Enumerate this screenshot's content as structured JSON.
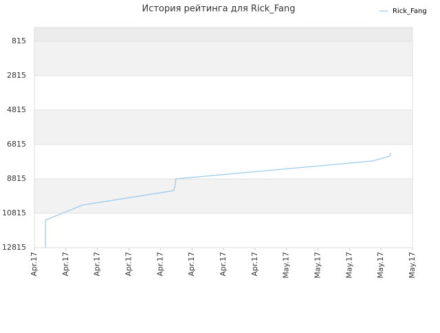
{
  "chart_data": {
    "type": "line",
    "title": "История рейтинга для Rick_Fang",
    "x": [
      0.35,
      0.35,
      1.53,
      4.43,
      4.47,
      4.49,
      10.73,
      11.28,
      11.3
    ],
    "series": [
      {
        "name": "Rick_Fang",
        "color": "#9ecae9",
        "values": [
          12815,
          11215,
          10335,
          9495,
          9135,
          8815,
          7775,
          7495,
          7295
        ]
      }
    ],
    "xlim": [
      0,
      12
    ],
    "xticks": [
      {
        "value": 0,
        "label": "Apr.17"
      },
      {
        "value": 1,
        "label": "Apr.17"
      },
      {
        "value": 2,
        "label": "Apr.17"
      },
      {
        "value": 3,
        "label": "Apr.17"
      },
      {
        "value": 4,
        "label": "Apr.17"
      },
      {
        "value": 5,
        "label": "Apr.17"
      },
      {
        "value": 6,
        "label": "Apr.17"
      },
      {
        "value": 7,
        "label": "Apr.17"
      },
      {
        "value": 8,
        "label": "May.17"
      },
      {
        "value": 9,
        "label": "May.17"
      },
      {
        "value": 10,
        "label": "May.17"
      },
      {
        "value": 11,
        "label": "May.17"
      },
      {
        "value": 12,
        "label": "May.17"
      }
    ],
    "ylim": [
      12815,
      15
    ],
    "yticks": [
      815,
      2815,
      4815,
      6815,
      8815,
      10815,
      12815
    ],
    "grid": true,
    "legend": "top-right"
  }
}
